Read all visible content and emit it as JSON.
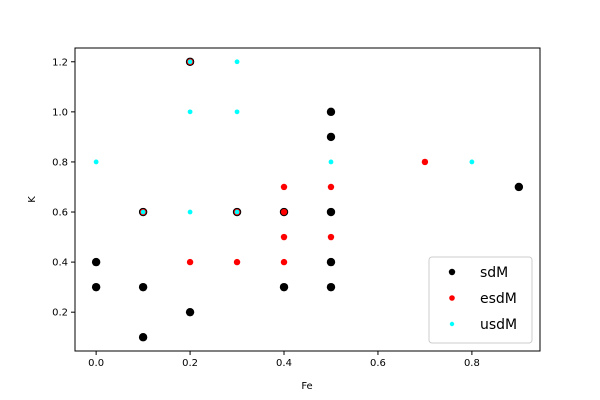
{
  "chart_data": {
    "type": "scatter",
    "title": "",
    "xlabel": "Fe",
    "ylabel": "K",
    "xlim": [
      -0.045,
      0.945
    ],
    "ylim": [
      0.045,
      1.255
    ],
    "xticks": [
      "0.0",
      "0.2",
      "0.4",
      "0.6",
      "0.8"
    ],
    "xtick_values": [
      0.0,
      0.2,
      0.4,
      0.6,
      0.8
    ],
    "yticks": [
      "0.2",
      "0.4",
      "0.6",
      "0.8",
      "1.0",
      "1.2"
    ],
    "ytick_values": [
      0.2,
      0.4,
      0.6,
      0.8,
      1.0,
      1.2
    ],
    "grid": false,
    "legend_position": "lower-right",
    "series": [
      {
        "name": "sdM",
        "color": "#000000",
        "marker_size": "large",
        "points": [
          [
            0.0,
            0.3
          ],
          [
            0.0,
            0.4
          ],
          [
            0.1,
            0.1
          ],
          [
            0.1,
            0.3
          ],
          [
            0.1,
            0.6
          ],
          [
            0.2,
            0.2
          ],
          [
            0.2,
            1.2
          ],
          [
            0.3,
            0.6
          ],
          [
            0.4,
            0.3
          ],
          [
            0.4,
            0.6
          ],
          [
            0.5,
            0.3
          ],
          [
            0.5,
            0.4
          ],
          [
            0.5,
            0.6
          ],
          [
            0.5,
            0.9
          ],
          [
            0.5,
            1.0
          ],
          [
            0.9,
            0.7
          ]
        ]
      },
      {
        "name": "esdM",
        "color": "#ff0000",
        "marker_size": "medium",
        "points": [
          [
            0.1,
            0.6
          ],
          [
            0.2,
            0.4
          ],
          [
            0.2,
            1.2
          ],
          [
            0.3,
            0.4
          ],
          [
            0.3,
            0.6
          ],
          [
            0.4,
            0.4
          ],
          [
            0.4,
            0.5
          ],
          [
            0.4,
            0.6
          ],
          [
            0.4,
            0.7
          ],
          [
            0.5,
            0.5
          ],
          [
            0.5,
            0.7
          ],
          [
            0.7,
            0.8
          ]
        ]
      },
      {
        "name": "usdM",
        "color": "#00ffff",
        "marker_size": "small",
        "points": [
          [
            0.0,
            0.8
          ],
          [
            0.1,
            0.6
          ],
          [
            0.2,
            0.6
          ],
          [
            0.2,
            1.0
          ],
          [
            0.2,
            1.2
          ],
          [
            0.3,
            0.6
          ],
          [
            0.3,
            1.0
          ],
          [
            0.3,
            1.2
          ],
          [
            0.5,
            0.8
          ],
          [
            0.8,
            0.8
          ]
        ]
      }
    ]
  }
}
